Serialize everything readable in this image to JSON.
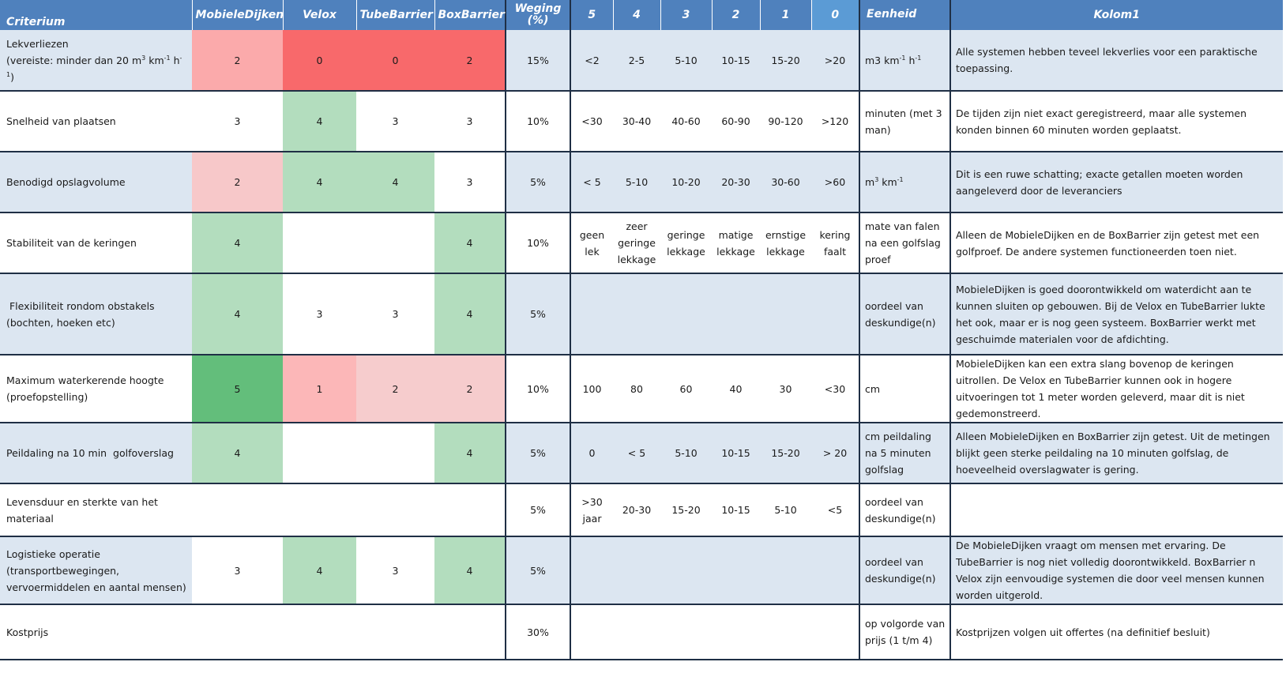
{
  "header": {
    "criterium": "Criterium",
    "mobieledijken": "MobieleDijken",
    "velox": "Velox",
    "tubebarrier": "TubeBarrier",
    "boxbarrier": "BoxBarrier",
    "weging": "Weging (%)",
    "s5": "5",
    "s4": "4",
    "s3": "3",
    "s2": "2",
    "s1": "1",
    "s0": "0",
    "eenheid": "Eenheid",
    "kolom1": "Kolom1"
  },
  "colors": {
    "header_blue": "#4f81bd",
    "header_highlight": "#5b9bd5",
    "band": "#dce6f1",
    "red_strong": "#f8696b",
    "red_light": "#fbaaab",
    "pink": "#f7c8c9",
    "green_light": "#b3ddbe",
    "green_strong": "#63be7b"
  },
  "rows": [
    {
      "crit_line1": "Lekverliezen",
      "crit_line2": "(vereiste: minder dan 20 m³ km⁻¹ h⁻¹)",
      "md": "2",
      "velox": "0",
      "tube": "0",
      "box": "2",
      "weging": "15%",
      "s5": "<2",
      "s4": "2-5",
      "s3": "5-10",
      "s2": "10-15",
      "s1": "15-20",
      "s0": ">20",
      "eenheid": "m3 km⁻¹ h⁻¹",
      "kolom1": "Alle systemen hebben teveel lekverlies voor een paraktische toepassing."
    },
    {
      "crit": "Snelheid van plaatsen",
      "md": "3",
      "velox": "4",
      "tube": "3",
      "box": "3",
      "weging": "10%",
      "s5": "<30",
      "s4": "30-40",
      "s3": "40-60",
      "s2": "60-90",
      "s1": "90-120",
      "s0": ">120",
      "eenheid": "minuten (met 3 man)",
      "kolom1": "De tijden zijn niet exact geregistreerd, maar alle systemen konden binnen 60 minuten worden geplaatst."
    },
    {
      "crit": "Benodigd opslagvolume",
      "md": "2",
      "velox": "4",
      "tube": "4",
      "box": "3",
      "weging": "5%",
      "s5": "< 5",
      "s4": "5-10",
      "s3": "10-20",
      "s2": "20-30",
      "s1": "30-60",
      "s0": ">60",
      "eenheid": "m³ km⁻¹",
      "kolom1": "Dit is een ruwe schatting; exacte getallen moeten worden aangeleverd door de leveranciers"
    },
    {
      "crit": "Stabiliteit van de keringen",
      "md": "4",
      "velox": "",
      "tube": "",
      "box": "4",
      "weging": "10%",
      "s5": "geen lek",
      "s4": "zeer geringe lekkage",
      "s3": "geringe lekkage",
      "s2": "matige lekkage",
      "s1": "ernstige lekkage",
      "s0": "kering faalt",
      "eenheid": "mate van falen na een golfslag proef",
      "kolom1": "Alleen de MobieleDijken en de BoxBarrier zijn getest met een golfproef. De andere systemen functioneerden toen niet."
    },
    {
      "crit_line1": " Flexibiliteit rondom obstakels",
      "crit_line2": "(bochten, hoeken etc)",
      "md": "4",
      "velox": "3",
      "tube": "3",
      "box": "4",
      "weging": "5%",
      "s5": "",
      "s4": "",
      "s3": "",
      "s2": "",
      "s1": "",
      "s0": "",
      "eenheid": "oordeel van deskundige(n)",
      "kolom1": "MobieleDijken is goed doorontwikkeld om waterdicht aan te kunnen sluiten op gebouwen. Bij de Velox en TubeBarrier lukte het ook, maar er is nog geen systeem. BoxBarrier werkt met geschuimde materialen voor de afdichting."
    },
    {
      "crit_line1": "Maximum waterkerende hoogte",
      "crit_line2": "(proefopstelling)",
      "md": "5",
      "velox": "1",
      "tube": "2",
      "box": "2",
      "weging": "10%",
      "s5": "100",
      "s4": "80",
      "s3": "60",
      "s2": "40",
      "s1": "30",
      "s0": "<30",
      "eenheid": "cm",
      "kolom1": "MobieleDijken kan een extra slang bovenop de keringen uitrollen. De Velox en TubeBarrier kunnen ook in hogere uitvoeringen tot 1 meter worden geleverd, maar dit is niet gedemonstreerd."
    },
    {
      "crit": "Peildaling na 10 min  golfoverslag",
      "md": "4",
      "velox": "",
      "tube": "",
      "box": "4",
      "weging": "5%",
      "s5": "0",
      "s4": "< 5",
      "s3": "5-10",
      "s2": "10-15",
      "s1": "15-20",
      "s0": "> 20",
      "eenheid": "cm peildaling na 5 minuten golfslag",
      "kolom1": "Alleen MobieleDijken en BoxBarrier zijn getest. Uit de metingen blijkt geen sterke peildaling na 10 minuten golfslag, de hoeveelheid overslagwater is gering."
    },
    {
      "crit": "Levensduur en sterkte van het materiaal",
      "md": "",
      "velox": "",
      "tube": "",
      "box": "",
      "weging": "5%",
      "s5": ">30 jaar",
      "s4": "20-30",
      "s3": "15-20",
      "s2": "10-15",
      "s1": "5-10",
      "s0": "<5",
      "eenheid": "oordeel van deskundige(n)",
      "kolom1": ""
    },
    {
      "crit": "Logistieke operatie (transportbewegingen, vervoermiddelen en aantal mensen)",
      "md": "3",
      "velox": "4",
      "tube": "3",
      "box": "4",
      "weging": "5%",
      "s5": "",
      "s4": "",
      "s3": "",
      "s2": "",
      "s1": "",
      "s0": "",
      "eenheid": "oordeel van deskundige(n)",
      "kolom1": "De MobieleDijken vraagt om mensen met ervaring. De TubeBarrier is nog niet volledig doorontwikkeld. BoxBarrier n Velox zijn eenvoudige systemen die door veel mensen kunnen worden uitgerold."
    },
    {
      "crit": "Kostprijs",
      "md": "",
      "velox": "",
      "tube": "",
      "box": "",
      "weging": "30%",
      "s5": "",
      "s4": "",
      "s3": "",
      "s2": "",
      "s1": "",
      "s0": "",
      "eenheid": "op volgorde van prijs (1 t/m 4)",
      "kolom1": "Kostprijzen volgen uit offertes (na definitief besluit)"
    }
  ]
}
